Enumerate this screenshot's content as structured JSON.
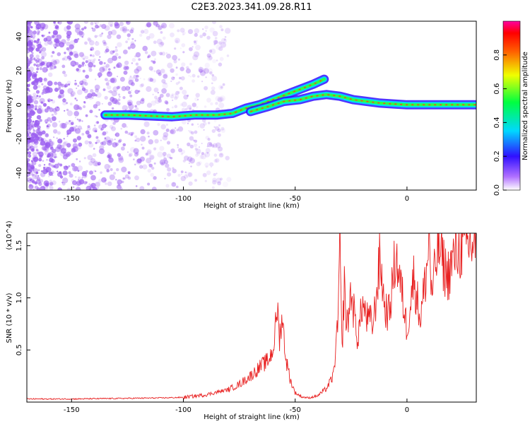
{
  "title": "C2E3.2023.341.09.28.R11",
  "colors": {
    "snr_line": "#e82020",
    "spectrum_dots": "#9a5cf0",
    "track_core": "#ff3030",
    "axis": "#000000"
  },
  "chart_data": [
    {
      "type": "heatmap",
      "name": "spectrogram",
      "xlabel": "Height of straight line (km)",
      "ylabel": "Frequency (Hz)",
      "xlim": [
        -170,
        31
      ],
      "ylim": [
        -50,
        49
      ],
      "x_ticks": [
        -150,
        -100,
        -50,
        0
      ],
      "y_ticks": [
        -40,
        -20,
        0,
        20,
        40
      ],
      "colorbar": {
        "label": "Normalized spectral amplitude",
        "range": [
          0,
          1
        ],
        "ticks": [
          "0.0",
          "0.2",
          "0.4",
          "0.6",
          "0.8"
        ],
        "colormap": "rainbow"
      },
      "tracks": [
        {
          "points": [
            [
              -135,
              -6
            ],
            [
              -125,
              -6
            ],
            [
              -115,
              -6.5
            ],
            [
              -105,
              -7
            ],
            [
              -95,
              -6
            ],
            [
              -85,
              -6
            ],
            [
              -78,
              -5
            ],
            [
              -72,
              -2
            ],
            [
              -66,
              0
            ],
            [
              -60,
              3
            ],
            [
              -54,
              6
            ],
            [
              -48,
              9
            ],
            [
              -42,
              12
            ],
            [
              -37,
              15
            ]
          ]
        },
        {
          "points": [
            [
              -70,
              -4
            ],
            [
              -62,
              -1
            ],
            [
              -55,
              2
            ],
            [
              -48,
              3
            ],
            [
              -42,
              5
            ],
            [
              -36,
              6
            ],
            [
              -30,
              5
            ],
            [
              -24,
              3
            ],
            [
              -18,
              2
            ],
            [
              -12,
              1
            ],
            [
              -6,
              0.5
            ],
            [
              0,
              0
            ],
            [
              10,
              0
            ],
            [
              20,
              0
            ],
            [
              31,
              0
            ]
          ]
        }
      ]
    },
    {
      "type": "line",
      "name": "snr",
      "xlabel": "Height of straight line (km)",
      "ylabel": "SNR (10 * v/v)",
      "y_multiplier": "(x10^4)",
      "xlim": [
        -170,
        31
      ],
      "ylim": [
        0,
        16200
      ],
      "x_ticks": [
        -150,
        -100,
        -50,
        0
      ],
      "y_ticks": [
        "0.5",
        "1.0",
        "1.5"
      ],
      "series": [
        {
          "x": [
            -170,
            -150,
            -130,
            -110,
            -100,
            -90,
            -80,
            -75,
            -70,
            -65,
            -62,
            -60,
            -59,
            -58,
            -57,
            -56,
            -54,
            -52,
            -50,
            -47,
            -44,
            -40,
            -36,
            -33,
            -31,
            -30,
            -29.5,
            -29,
            -28,
            -27,
            -25,
            -22,
            -20,
            -18,
            -15,
            -12,
            -10,
            -8,
            -5,
            -2,
            0,
            3,
            6,
            9,
            10,
            11,
            14,
            18,
            22,
            26,
            31
          ],
          "y": [
            300,
            300,
            350,
            400,
            450,
            700,
            1200,
            1700,
            2500,
            3500,
            4000,
            5000,
            6500,
            9200,
            6000,
            8300,
            4000,
            2000,
            900,
            500,
            400,
            600,
            1300,
            2500,
            7000,
            15100,
            9000,
            5000,
            11500,
            7000,
            10500,
            6000,
            9500,
            8000,
            7500,
            14000,
            9000,
            8500,
            14200,
            10000,
            7000,
            12000,
            8000,
            13000,
            16200,
            10000,
            15000,
            12000,
            14500,
            15000,
            15300
          ]
        }
      ]
    }
  ]
}
